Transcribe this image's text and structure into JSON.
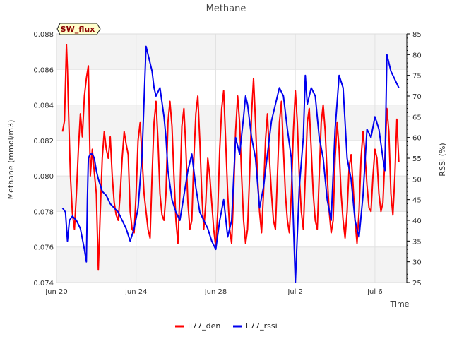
{
  "chart_data": {
    "type": "line",
    "title": "Methane",
    "badge": "SW_flux",
    "xlabel": "Time",
    "ylabel": "Methane (mmol/m3)",
    "y2label": "RSSI (%)",
    "x_ticks": [
      "Jun 20",
      "Jun 24",
      "Jun 28",
      "Jul 2",
      "Jul 6"
    ],
    "x_tick_days": [
      0,
      4,
      8,
      12,
      16
    ],
    "xlim_days": [
      0,
      17.6
    ],
    "ylim": [
      0.074,
      0.088
    ],
    "y_ticks": [
      0.074,
      0.076,
      0.078,
      0.08,
      0.082,
      0.084,
      0.086,
      0.088
    ],
    "y_tick_labels": [
      "0.074",
      "0.076",
      "0.078",
      "0.080",
      "0.082",
      "0.084",
      "0.086",
      "0.088"
    ],
    "y2lim": [
      25,
      85
    ],
    "y2_ticks": [
      25,
      30,
      35,
      40,
      45,
      50,
      55,
      60,
      65,
      70,
      75,
      80,
      85
    ],
    "y2_tick_labels": [
      "25",
      "30",
      "35",
      "40",
      "45",
      "50",
      "55",
      "60",
      "65",
      "70",
      "75",
      "80",
      "85"
    ],
    "grid": true,
    "legend_position": "bottom-center",
    "series": [
      {
        "name": "li77_den",
        "color": "#ff0000",
        "axis": "left",
        "x": [
          0.3,
          0.4,
          0.5,
          0.55,
          0.6,
          0.7,
          0.8,
          0.9,
          1.0,
          1.1,
          1.2,
          1.3,
          1.4,
          1.5,
          1.6,
          1.7,
          1.8,
          1.9,
          2.0,
          2.1,
          2.2,
          2.3,
          2.4,
          2.5,
          2.6,
          2.7,
          2.8,
          2.9,
          3.0,
          3.1,
          3.2,
          3.3,
          3.4,
          3.5,
          3.6,
          3.7,
          3.8,
          3.9,
          4.0,
          4.1,
          4.2,
          4.3,
          4.4,
          4.5,
          4.6,
          4.7,
          4.8,
          4.9,
          5.0,
          5.1,
          5.2,
          5.3,
          5.4,
          5.5,
          5.6,
          5.7,
          5.8,
          5.9,
          6.0,
          6.1,
          6.2,
          6.3,
          6.4,
          6.5,
          6.6,
          6.7,
          6.8,
          6.9,
          7.0,
          7.1,
          7.2,
          7.3,
          7.4,
          7.5,
          7.6,
          7.7,
          7.8,
          7.9,
          8.0,
          8.1,
          8.2,
          8.3,
          8.4,
          8.5,
          8.6,
          8.7,
          8.8,
          8.9,
          9.0,
          9.1,
          9.2,
          9.3,
          9.4,
          9.5,
          9.6,
          9.7,
          9.8,
          9.9,
          10.0,
          10.1,
          10.2,
          10.3,
          10.4,
          10.5,
          10.6,
          10.7,
          10.8,
          10.9,
          11.0,
          11.1,
          11.2,
          11.3,
          11.4,
          11.5,
          11.6,
          11.7,
          11.8,
          11.9,
          12.0,
          12.1,
          12.2,
          12.3,
          12.4,
          12.5,
          12.6,
          12.7,
          12.8,
          12.9,
          13.0,
          13.1,
          13.2,
          13.3,
          13.4,
          13.5,
          13.6,
          13.7,
          13.8,
          13.9,
          14.0,
          14.1,
          14.2,
          14.3,
          14.4,
          14.5,
          14.6,
          14.7,
          14.8,
          14.9,
          15.0,
          15.1,
          15.2,
          15.3,
          15.4,
          15.5,
          15.6,
          15.7,
          15.8,
          15.9,
          16.0,
          16.1,
          16.2,
          16.3,
          16.4,
          16.5,
          16.6,
          16.7,
          16.8,
          16.9,
          17.0,
          17.1,
          17.2
        ],
        "values": [
          0.0825,
          0.0831,
          0.0874,
          0.086,
          0.0838,
          0.08,
          0.0779,
          0.077,
          0.079,
          0.0815,
          0.0835,
          0.0822,
          0.0845,
          0.0855,
          0.0862,
          0.08,
          0.0815,
          0.0802,
          0.079,
          0.0747,
          0.078,
          0.081,
          0.0825,
          0.0815,
          0.081,
          0.0822,
          0.08,
          0.0785,
          0.0778,
          0.0775,
          0.079,
          0.081,
          0.0825,
          0.0818,
          0.0812,
          0.078,
          0.077,
          0.0768,
          0.079,
          0.082,
          0.083,
          0.081,
          0.079,
          0.078,
          0.077,
          0.0765,
          0.08,
          0.083,
          0.0842,
          0.082,
          0.079,
          0.0778,
          0.0775,
          0.079,
          0.083,
          0.0842,
          0.0828,
          0.08,
          0.0775,
          0.0762,
          0.079,
          0.0828,
          0.0838,
          0.0815,
          0.0785,
          0.077,
          0.0775,
          0.081,
          0.0835,
          0.0845,
          0.082,
          0.079,
          0.077,
          0.0785,
          0.081,
          0.08,
          0.0785,
          0.077,
          0.076,
          0.078,
          0.0815,
          0.0838,
          0.0848,
          0.082,
          0.079,
          0.077,
          0.0762,
          0.079,
          0.0825,
          0.0845,
          0.083,
          0.08,
          0.0775,
          0.0762,
          0.077,
          0.08,
          0.0835,
          0.0855,
          0.083,
          0.08,
          0.078,
          0.0768,
          0.079,
          0.082,
          0.0835,
          0.081,
          0.079,
          0.0775,
          0.077,
          0.08,
          0.083,
          0.0842,
          0.0815,
          0.079,
          0.0775,
          0.0768,
          0.079,
          0.0825,
          0.0848,
          0.083,
          0.08,
          0.078,
          0.077,
          0.08,
          0.083,
          0.0838,
          0.0815,
          0.079,
          0.0775,
          0.077,
          0.08,
          0.083,
          0.084,
          0.0825,
          0.08,
          0.078,
          0.0768,
          0.0775,
          0.081,
          0.083,
          0.0815,
          0.079,
          0.0775,
          0.0765,
          0.078,
          0.0805,
          0.0812,
          0.0795,
          0.0775,
          0.0762,
          0.078,
          0.081,
          0.0825,
          0.0812,
          0.0795,
          0.0782,
          0.078,
          0.08,
          0.0815,
          0.081,
          0.079,
          0.078,
          0.0785,
          0.081,
          0.0838,
          0.0825,
          0.079,
          0.0778,
          0.08,
          0.0832,
          0.0808
        ],
        "note": "values estimated from plot"
      },
      {
        "name": "li77_rssi",
        "color": "#0000ee",
        "axis": "right",
        "x": [
          0.3,
          0.45,
          0.55,
          0.65,
          0.8,
          1.0,
          1.2,
          1.4,
          1.5,
          1.55,
          1.6,
          1.7,
          1.8,
          1.9,
          2.0,
          2.1,
          2.3,
          2.5,
          2.7,
          2.9,
          3.1,
          3.3,
          3.5,
          3.7,
          3.9,
          4.1,
          4.3,
          4.5,
          4.7,
          4.8,
          4.9,
          5.0,
          5.2,
          5.4,
          5.5,
          5.6,
          5.8,
          6.0,
          6.2,
          6.4,
          6.6,
          6.8,
          7.0,
          7.2,
          7.4,
          7.6,
          7.8,
          8.0,
          8.2,
          8.4,
          8.6,
          8.8,
          9.0,
          9.2,
          9.4,
          9.5,
          9.6,
          9.8,
          10.0,
          10.2,
          10.4,
          10.6,
          10.8,
          11.0,
          11.2,
          11.4,
          11.6,
          11.8,
          12.0,
          12.2,
          12.4,
          12.5,
          12.6,
          12.8,
          13.0,
          13.2,
          13.4,
          13.6,
          13.8,
          14.0,
          14.2,
          14.4,
          14.6,
          14.8,
          15.0,
          15.2,
          15.4,
          15.6,
          15.8,
          16.0,
          16.2,
          16.4,
          16.5,
          16.6,
          16.8,
          17.0,
          17.2
        ],
        "values": [
          43,
          42,
          35,
          40,
          41,
          40,
          38,
          33,
          30,
          45,
          55,
          56,
          56,
          55,
          52,
          50,
          47,
          46,
          44,
          43,
          42,
          40,
          38,
          35,
          38,
          43,
          56,
          82,
          78,
          76,
          72,
          70,
          72,
          65,
          60,
          52,
          45,
          42,
          40,
          46,
          52,
          56,
          48,
          42,
          40,
          38,
          35,
          33,
          40,
          45,
          36,
          40,
          60,
          56,
          65,
          70,
          68,
          60,
          55,
          43,
          48,
          56,
          64,
          68,
          72,
          70,
          62,
          55,
          25,
          48,
          60,
          75,
          68,
          72,
          70,
          60,
          55,
          45,
          40,
          62,
          75,
          72,
          55,
          50,
          40,
          36,
          46,
          62,
          60,
          65,
          62,
          55,
          52,
          80,
          76,
          74,
          72
        ]
      }
    ]
  },
  "legend": {
    "items": [
      {
        "label": "li77_den",
        "color": "#ff0000"
      },
      {
        "label": "li77_rssi",
        "color": "#0000ee"
      }
    ]
  }
}
